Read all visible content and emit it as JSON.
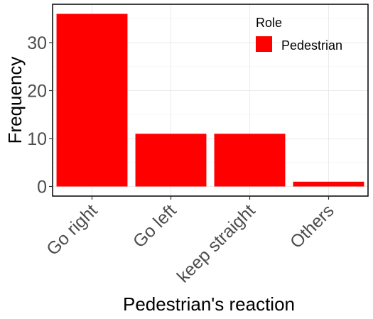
{
  "chart_data": {
    "type": "bar",
    "categories": [
      "Go right",
      "Go left",
      "keep straight",
      "Others"
    ],
    "series": [
      {
        "name": "Pedestrian",
        "values": [
          36,
          11,
          11,
          1
        ],
        "color": "#ff0000"
      }
    ],
    "xlabel": "Pedestrian's reaction",
    "ylabel": "Frequency",
    "yticks": [
      0,
      10,
      20,
      30
    ],
    "ylim": [
      -2,
      38
    ],
    "grid": true,
    "legend": {
      "title": "Role",
      "position": "top-right"
    }
  }
}
